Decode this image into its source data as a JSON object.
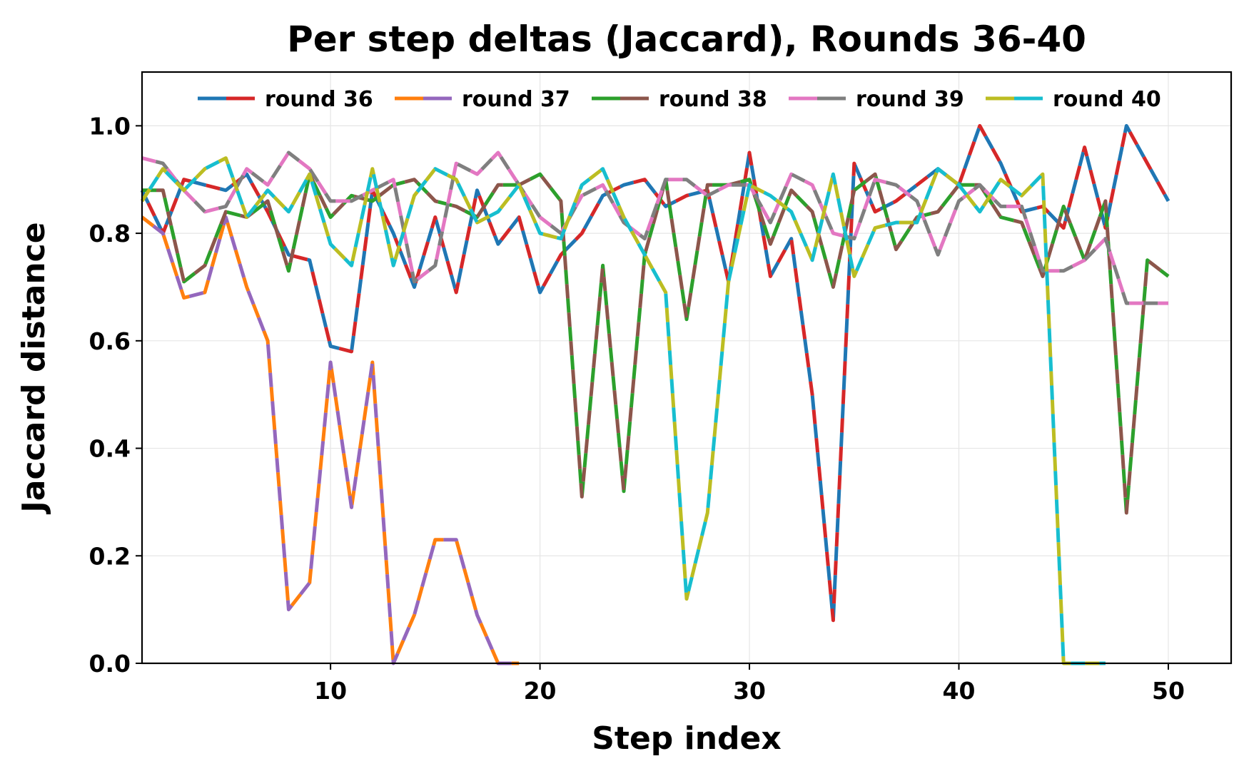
{
  "chart_data": {
    "type": "line",
    "title": "Per step deltas (Jaccard), Rounds 36-40",
    "xlabel": "Step index",
    "ylabel": "Jaccard distance",
    "xlim": [
      1,
      53
    ],
    "ylim": [
      0,
      1.1
    ],
    "xticks": [
      10,
      20,
      30,
      40,
      50
    ],
    "yticks": [
      0.0,
      0.2,
      0.4,
      0.6,
      0.8,
      1.0
    ],
    "xtick_labels": [
      "10",
      "20",
      "30",
      "40",
      "50"
    ],
    "ytick_labels": [
      "0.0",
      "0.2",
      "0.4",
      "0.6",
      "0.8",
      "1.0"
    ],
    "grid": true,
    "legend_position": "top, inside, single row",
    "x": [
      1,
      2,
      3,
      4,
      5,
      6,
      7,
      8,
      9,
      10,
      11,
      12,
      13,
      14,
      15,
      16,
      17,
      18,
      19,
      20,
      21,
      22,
      23,
      24,
      25,
      26,
      27,
      28,
      29,
      30,
      31,
      32,
      33,
      34,
      35,
      36,
      37,
      38,
      39,
      40,
      41,
      42,
      43,
      44,
      45,
      46,
      47,
      48,
      49,
      50
    ],
    "series": [
      {
        "name": "round 36",
        "colors": [
          "#1f77b4",
          "#d62728"
        ],
        "values": [
          0.88,
          0.8,
          0.9,
          0.89,
          0.88,
          0.91,
          0.84,
          0.76,
          0.75,
          0.59,
          0.58,
          0.88,
          0.8,
          0.7,
          0.83,
          0.69,
          0.88,
          0.78,
          0.83,
          0.69,
          0.76,
          0.8,
          0.87,
          0.89,
          0.9,
          0.85,
          0.87,
          0.88,
          0.71,
          0.95,
          0.72,
          0.79,
          0.5,
          0.08,
          0.93,
          0.84,
          0.86,
          0.89,
          0.92,
          0.89,
          1.0,
          0.93,
          0.84,
          0.85,
          0.81,
          0.96,
          0.81,
          1.0,
          0.93,
          0.86
        ]
      },
      {
        "name": "round 37",
        "colors": [
          "#ff7f0e",
          "#9467bd"
        ],
        "values": [
          0.83,
          0.8,
          0.68,
          0.69,
          0.83,
          0.7,
          0.6,
          0.1,
          0.15,
          0.56,
          0.29,
          0.56,
          0.0,
          0.09,
          0.23,
          0.23,
          0.09,
          0.0,
          0.0,
          null,
          null,
          null,
          null,
          null,
          null,
          null,
          null,
          null,
          null,
          null,
          null,
          null,
          null,
          null,
          null,
          null,
          null,
          null,
          null,
          null,
          null,
          null,
          null,
          null,
          null,
          null,
          null,
          null,
          null,
          null
        ]
      },
      {
        "name": "round 38",
        "colors": [
          "#2ca02c",
          "#8c564b"
        ],
        "values": [
          0.88,
          0.88,
          0.71,
          0.74,
          0.84,
          0.83,
          0.86,
          0.73,
          0.91,
          0.83,
          0.87,
          0.86,
          0.89,
          0.9,
          0.86,
          0.85,
          0.83,
          0.89,
          0.89,
          0.91,
          0.86,
          0.31,
          0.74,
          0.32,
          0.76,
          0.9,
          0.64,
          0.89,
          0.89,
          0.9,
          0.78,
          0.88,
          0.84,
          0.7,
          0.88,
          0.91,
          0.77,
          0.83,
          0.84,
          0.89,
          0.89,
          0.83,
          0.82,
          0.72,
          0.85,
          0.75,
          0.86,
          0.28,
          0.75,
          0.72
        ]
      },
      {
        "name": "round 39",
        "colors": [
          "#e377c2",
          "#7f7f7f"
        ],
        "values": [
          0.94,
          0.93,
          0.88,
          0.84,
          0.85,
          0.92,
          0.89,
          0.95,
          0.92,
          0.86,
          0.86,
          0.88,
          0.9,
          0.71,
          0.74,
          0.93,
          0.91,
          0.95,
          0.89,
          0.83,
          0.8,
          0.87,
          0.89,
          0.82,
          0.79,
          0.9,
          0.9,
          0.87,
          0.89,
          0.89,
          0.82,
          0.91,
          0.89,
          0.8,
          0.79,
          0.9,
          0.89,
          0.86,
          0.76,
          0.86,
          0.89,
          0.85,
          0.85,
          0.73,
          0.73,
          0.75,
          0.79,
          0.67,
          0.67,
          0.67
        ]
      },
      {
        "name": "round 40",
        "colors": [
          "#bcbd22",
          "#17becf"
        ],
        "values": [
          0.86,
          0.92,
          0.88,
          0.92,
          0.94,
          0.83,
          0.88,
          0.84,
          0.91,
          0.78,
          0.74,
          0.92,
          0.74,
          0.87,
          0.92,
          0.9,
          0.82,
          0.84,
          0.89,
          0.8,
          0.79,
          0.89,
          0.92,
          0.83,
          0.76,
          0.69,
          0.12,
          0.28,
          0.71,
          0.89,
          0.87,
          0.84,
          0.75,
          0.91,
          0.72,
          0.81,
          0.82,
          0.82,
          0.92,
          0.89,
          0.84,
          0.9,
          0.87,
          0.91,
          0.0,
          0.0,
          0.0,
          null,
          null,
          null
        ]
      }
    ]
  }
}
